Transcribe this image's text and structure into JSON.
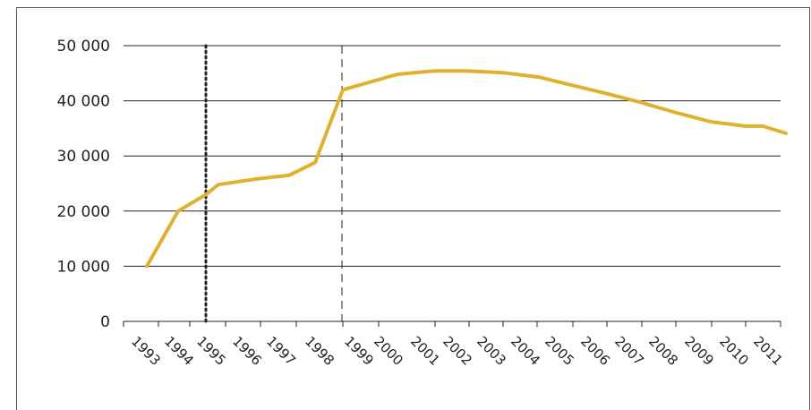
{
  "chart_data": {
    "type": "line",
    "title": "",
    "xlabel": "",
    "ylabel": "",
    "x_ticks": [
      "1993",
      "1994",
      "1995",
      "1996",
      "1997",
      "1998",
      "1999",
      "2000",
      "2001",
      "2002",
      "2003",
      "2004",
      "2005",
      "2006",
      "2007",
      "2008",
      "2009",
      "2010",
      "2011"
    ],
    "y_ticks": [
      "0",
      "10 000",
      "20 000",
      "30 000",
      "40 000",
      "50 000"
    ],
    "ylim": [
      0,
      50000
    ],
    "xlim": [
      1993,
      2011.75
    ],
    "grid": "horizontal",
    "series": [
      {
        "color": "#E0B12E",
        "points": [
          {
            "x": 1993.45,
            "y": 10000
          },
          {
            "x": 1994.3,
            "y": 20000
          },
          {
            "x": 1995.0,
            "y": 23000
          },
          {
            "x": 1995.5,
            "y": 24800
          },
          {
            "x": 1996.5,
            "y": 25800
          },
          {
            "x": 1997.4,
            "y": 26500
          },
          {
            "x": 1998.1,
            "y": 28800
          },
          {
            "x": 1998.7,
            "y": 42000
          },
          {
            "x": 2000.0,
            "y": 44800
          },
          {
            "x": 2001.0,
            "y": 45400
          },
          {
            "x": 2002.0,
            "y": 45400
          },
          {
            "x": 2003.0,
            "y": 45100
          },
          {
            "x": 2004.0,
            "y": 44300
          },
          {
            "x": 2005.0,
            "y": 42800
          },
          {
            "x": 2006.0,
            "y": 41300
          },
          {
            "x": 2007.0,
            "y": 39700
          },
          {
            "x": 2008.0,
            "y": 37900
          },
          {
            "x": 2009.0,
            "y": 36200
          },
          {
            "x": 2010.0,
            "y": 35400
          },
          {
            "x": 2011.0,
            "y": 35400
          },
          {
            "x": 2011.75,
            "y": 34100
          }
        ]
      }
    ],
    "reference_lines": [
      {
        "x": 1995.0,
        "style": "dotted",
        "color": "#222222"
      },
      {
        "x": 1998.85,
        "style": "dashed",
        "color": "#222222"
      }
    ],
    "colors": {
      "axis": "#222222",
      "grid": "#222222",
      "frame": "#555555"
    }
  }
}
